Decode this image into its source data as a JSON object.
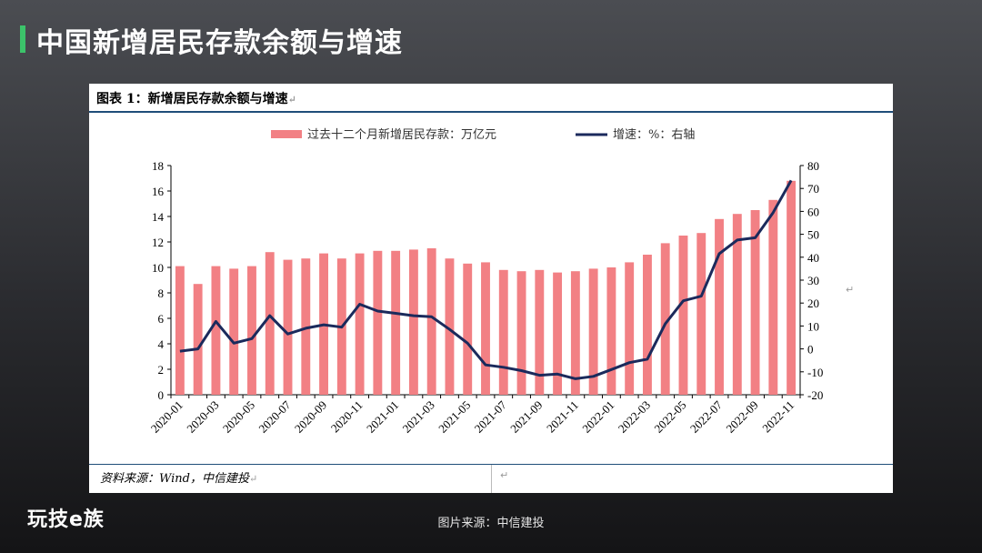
{
  "page": {
    "title": "中国新增居民存款余额与增速",
    "logo": "玩技e族",
    "image_source": "图片来源：中信建投"
  },
  "figure": {
    "caption": "图表 1：新增居民存款余额与增速",
    "paragraph_mark": "↵",
    "source": "资料来源：Wind，中信建投"
  },
  "colors": {
    "bar": "#f28084",
    "line": "#1b2a5c",
    "accent": "#3cc36a"
  },
  "chart_data": {
    "type": "bar",
    "legend": [
      {
        "name": "过去十二个月新增居民存款：万亿元",
        "kind": "bar"
      },
      {
        "name": "增速：%：右轴",
        "kind": "line"
      }
    ],
    "legend_position": "top",
    "categories": [
      "2020-01",
      "2020-02",
      "2020-03",
      "2020-04",
      "2020-05",
      "2020-06",
      "2020-07",
      "2020-08",
      "2020-09",
      "2020-10",
      "2020-11",
      "2020-12",
      "2021-01",
      "2021-02",
      "2021-03",
      "2021-04",
      "2021-05",
      "2021-06",
      "2021-07",
      "2021-08",
      "2021-09",
      "2021-10",
      "2021-11",
      "2021-12",
      "2022-01",
      "2022-02",
      "2022-03",
      "2022-04",
      "2022-05",
      "2022-06",
      "2022-07",
      "2022-08",
      "2022-09",
      "2022-10",
      "2022-11"
    ],
    "x_tick_labels": [
      "2020-01",
      "2020-03",
      "2020-05",
      "2020-07",
      "2020-09",
      "2020-11",
      "2021-01",
      "2021-03",
      "2021-05",
      "2021-07",
      "2021-09",
      "2021-11",
      "2022-01",
      "2022-03",
      "2022-05",
      "2022-07",
      "2022-09",
      "2022-11"
    ],
    "series": [
      {
        "name": "过去十二个月新增居民存款：万亿元",
        "axis": "left",
        "values": [
          10.1,
          8.7,
          10.1,
          9.9,
          10.1,
          11.2,
          10.6,
          10.7,
          11.1,
          10.7,
          11.1,
          11.3,
          11.3,
          11.4,
          11.5,
          10.7,
          10.3,
          10.4,
          9.8,
          9.7,
          9.8,
          9.6,
          9.7,
          9.9,
          10.0,
          10.4,
          11.0,
          11.9,
          12.5,
          12.7,
          13.8,
          14.2,
          14.5,
          15.3,
          16.8
        ]
      },
      {
        "name": "增速：%：右轴",
        "axis": "right",
        "values": [
          -1,
          0,
          12,
          2.5,
          4.5,
          14.5,
          6.5,
          9,
          10.5,
          9.5,
          19.5,
          16.5,
          15.5,
          14.5,
          14,
          8.5,
          2.5,
          -7,
          -8,
          -9.5,
          -11.5,
          -11,
          -13,
          -12,
          -9,
          -6,
          -4.5,
          11,
          21,
          23,
          41.5,
          47.5,
          48.5,
          59.5,
          73.5
        ]
      }
    ],
    "y_left": {
      "min": 0,
      "max": 18,
      "ticks": [
        0,
        2,
        4,
        6,
        8,
        10,
        12,
        14,
        16,
        18
      ]
    },
    "y_right": {
      "min": -20,
      "max": 80,
      "ticks": [
        -20,
        -10,
        0,
        10,
        20,
        30,
        40,
        50,
        60,
        70,
        80
      ]
    },
    "grid": false
  }
}
